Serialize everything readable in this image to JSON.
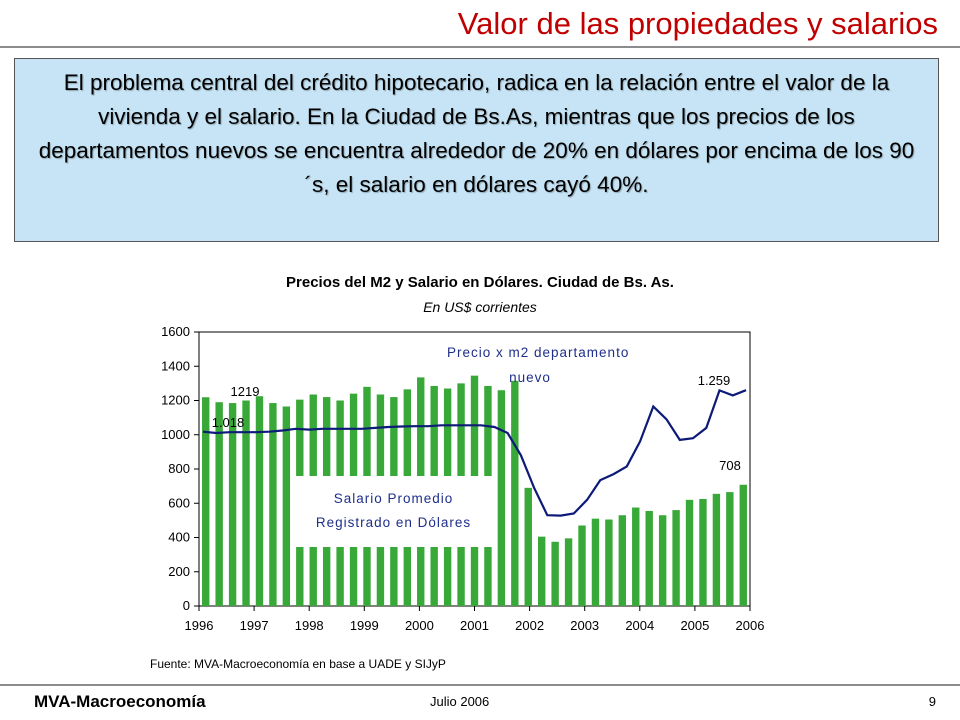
{
  "slide": {
    "title": "Valor de las propiedades  y salarios",
    "intro": "El problema central del crédito hipotecario, radica en la relación entre el valor de la vivienda y el salario. En la Ciudad de Bs.As, mientras que los precios de los departamentos nuevos se encuentra alrededor de 20% en dólares por encima de los 90´s, el salario en dólares cayó 40%."
  },
  "footer": {
    "left": "MVA-Macroeconomía",
    "center": "Julio  2006",
    "page": "9"
  },
  "chart_data": {
    "type": "bar",
    "title": "Precios del M2 y Salario en Dólares. Ciudad de Bs. As.",
    "subtitle": "En US$ corrientes",
    "source": "Fuente: MVA-Macroeconomía en base a UADE y SIJyP",
    "xlabel": "",
    "ylabel": "",
    "ylim": [
      0,
      1600
    ],
    "yticks": [
      0,
      200,
      400,
      600,
      800,
      1000,
      1200,
      1400,
      1600
    ],
    "xticks": [
      "1996",
      "1997",
      "1998",
      "1999",
      "2000",
      "2001",
      "2002",
      "2003",
      "2004",
      "2005",
      "2006"
    ],
    "grid": false,
    "colors": {
      "bars": "#38a838",
      "line": "#0d1a78",
      "plot_bg": "#ffffff"
    },
    "series": [
      {
        "type": "bar",
        "values": [
          1219,
          1190,
          1185,
          1200,
          1225,
          1185,
          1165,
          1205,
          1235,
          1220,
          1200,
          1240,
          1280,
          1235,
          1220,
          1265,
          1335,
          1285,
          1270,
          1300,
          1345,
          1285,
          1260,
          1315,
          690,
          405,
          375,
          395,
          470,
          510,
          505,
          530,
          575,
          555,
          530,
          560,
          620,
          625,
          655,
          665,
          708
        ]
      },
      {
        "type": "line",
        "values": [
          1018,
          1010,
          1015,
          1015,
          1015,
          1018,
          1025,
          1035,
          1030,
          1035,
          1035,
          1035,
          1035,
          1040,
          1045,
          1048,
          1050,
          1050,
          1055,
          1055,
          1055,
          1055,
          1045,
          1010,
          880,
          690,
          530,
          528,
          540,
          620,
          735,
          770,
          815,
          960,
          1165,
          1090,
          970,
          980,
          1040,
          1259,
          1230,
          1260
        ]
      }
    ],
    "annotations": {
      "bars_box": [
        "Salario Promedio",
        "Registrado en Dólares"
      ],
      "line_note": [
        "Precio x m2 departamento",
        "nuevo"
      ],
      "labels": [
        "1219",
        "1.018",
        "1.259",
        "708"
      ]
    }
  }
}
